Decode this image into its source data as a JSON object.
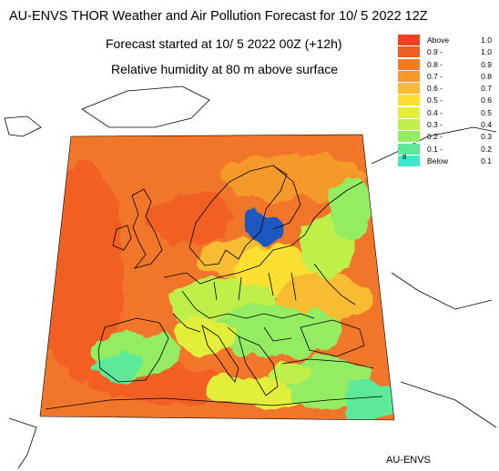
{
  "title": "AU-ENVS THOR Weather and Air Pollution Forecast for 10/ 5 2022  12Z",
  "subtitle_1": "Forecast started at 10/ 5 2022  00Z (+12h)",
  "subtitle_2": "Relative humidity at 80 m above surface",
  "footer": "AU-ENVS",
  "legend": [
    {
      "label": "Above",
      "value": "1.0",
      "color": "#f0401e"
    },
    {
      "label": "0.9 -",
      "value": "1.0",
      "color": "#f15e22"
    },
    {
      "label": "0.8 -",
      "value": "0.9",
      "color": "#f27a26"
    },
    {
      "label": "0.7 -",
      "value": "0.8",
      "color": "#f59a2a"
    },
    {
      "label": "0.6 -",
      "value": "0.7",
      "color": "#f8bc30"
    },
    {
      "label": "0.5 -",
      "value": "0.6",
      "color": "#fbe033"
    },
    {
      "label": "0.4 -",
      "value": "0.5",
      "color": "#e3ee3b"
    },
    {
      "label": "0.3 -",
      "value": "0.4",
      "color": "#bff04a"
    },
    {
      "label": "0.2 -",
      "value": "0.3",
      "color": "#93ec62"
    },
    {
      "label": "0.1 -",
      "value": "0.2",
      "color": "#5cea9a"
    },
    {
      "label": "Below",
      "value": "0.1",
      "color": "#40e8cc",
      "mark": "B"
    }
  ]
}
